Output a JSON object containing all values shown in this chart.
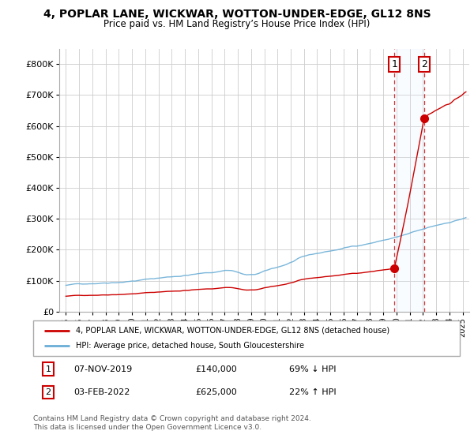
{
  "title": "4, POPLAR LANE, WICKWAR, WOTTON-UNDER-EDGE, GL12 8NS",
  "subtitle": "Price paid vs. HM Land Registry’s House Price Index (HPI)",
  "sale1_year": 2019.833,
  "sale1_value": 140000,
  "sale2_year": 2022.083,
  "sale2_value": 625000,
  "hpi_color": "#6baed6",
  "sale_color": "#cc0000",
  "legend_label1": "4, POPLAR LANE, WICKWAR, WOTTON-UNDER-EDGE, GL12 8NS (detached house)",
  "legend_label2": "HPI: Average price, detached house, South Gloucestershire",
  "ylim": [
    0,
    850000
  ],
  "xlim_min": 1994.5,
  "xlim_max": 2025.5,
  "yticks": [
    0,
    100000,
    200000,
    300000,
    400000,
    500000,
    600000,
    700000,
    800000
  ],
  "ytick_labels": [
    "£0",
    "£100K",
    "£200K",
    "£300K",
    "£400K",
    "£500K",
    "£600K",
    "£700K",
    "£800K"
  ],
  "xtick_years": [
    1995,
    1996,
    1997,
    1998,
    1999,
    2000,
    2001,
    2002,
    2003,
    2004,
    2005,
    2006,
    2007,
    2008,
    2009,
    2010,
    2011,
    2012,
    2013,
    2014,
    2015,
    2016,
    2017,
    2018,
    2019,
    2020,
    2021,
    2022,
    2023,
    2024,
    2025
  ],
  "footer": "Contains HM Land Registry data © Crown copyright and database right 2024.\nThis data is licensed under the Open Government Licence v3.0.",
  "bg_color": "#ffffff",
  "grid_color": "#cccccc",
  "span_color": "#ddeeff",
  "vline_color": "#cc0000"
}
